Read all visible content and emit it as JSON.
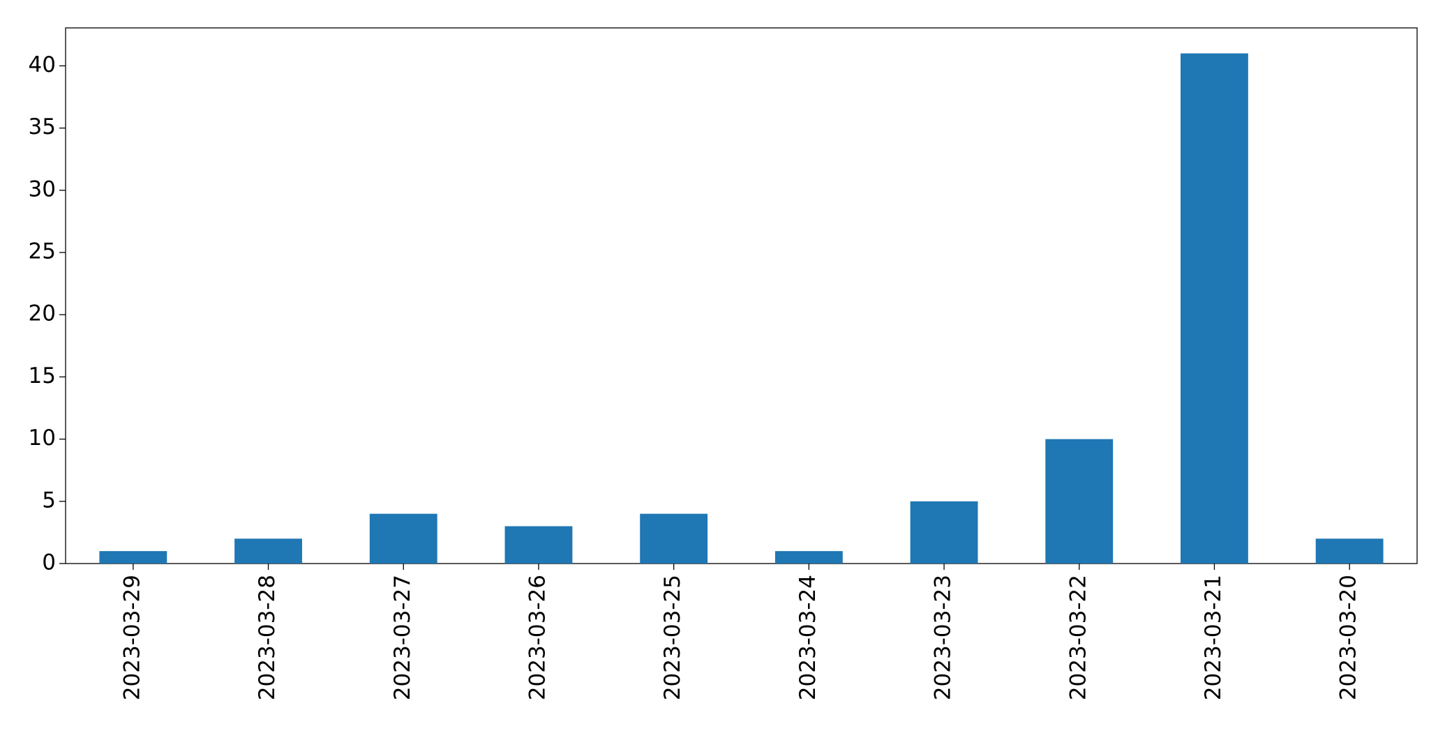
{
  "chart_data": {
    "type": "bar",
    "categories": [
      "2023-03-29",
      "2023-03-28",
      "2023-03-27",
      "2023-03-26",
      "2023-03-25",
      "2023-03-24",
      "2023-03-23",
      "2023-03-22",
      "2023-03-21",
      "2023-03-20"
    ],
    "values": [
      1,
      2,
      4,
      3,
      4,
      1,
      5,
      10,
      41,
      2
    ],
    "color": "#1f77b4",
    "ylim": [
      0,
      43.05
    ],
    "yticks": [
      0,
      5,
      10,
      15,
      20,
      25,
      30,
      35,
      40
    ],
    "grid": false
  }
}
